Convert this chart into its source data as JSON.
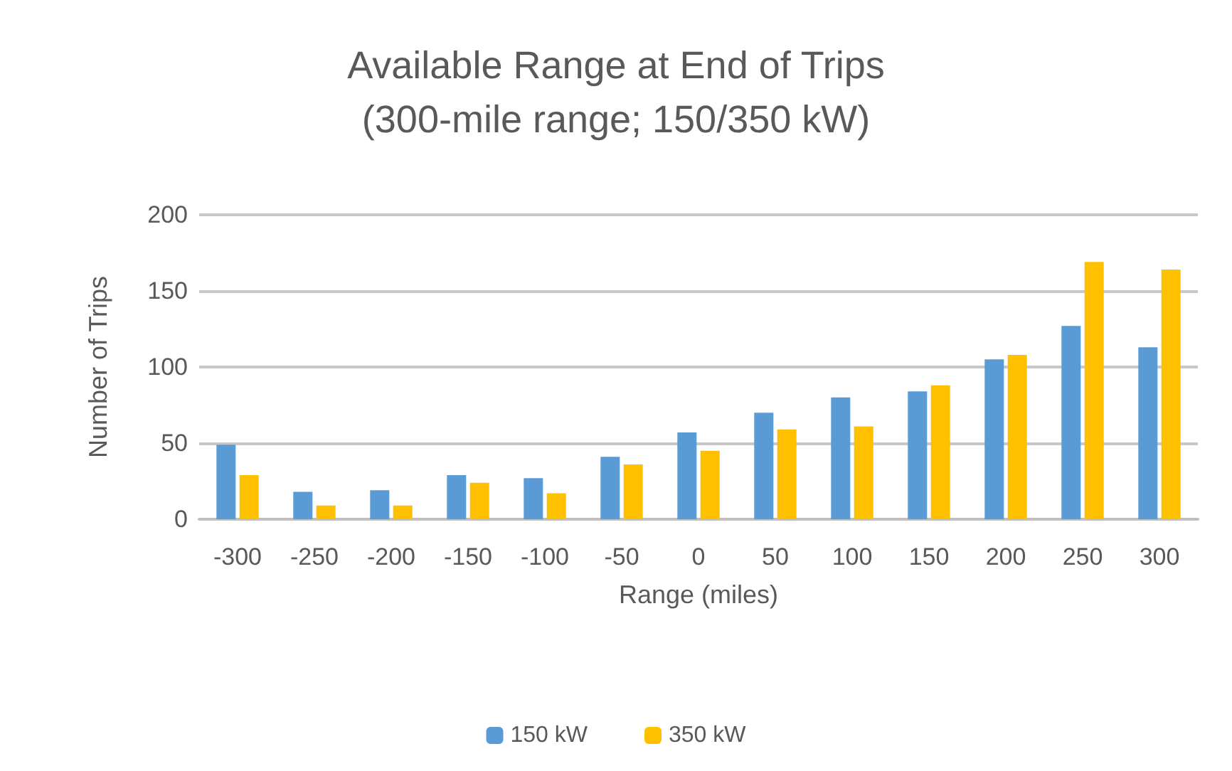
{
  "chart_data": {
    "type": "bar",
    "title": "Available Range at End of Trips\n(300-mile range; 150/350 kW)",
    "xlabel": "Range (miles)",
    "ylabel": "Number of Trips",
    "categories": [
      "-300",
      "-250",
      "-200",
      "-150",
      "-100",
      "-50",
      "0",
      "50",
      "100",
      "150",
      "200",
      "250",
      "300"
    ],
    "series": [
      {
        "name": "150 kW",
        "color": "#5b9bd5",
        "values": [
          49,
          18,
          19,
          29,
          27,
          41,
          57,
          70,
          80,
          84,
          105,
          127,
          113
        ]
      },
      {
        "name": "350 kW",
        "color": "#ffc000",
        "values": [
          29,
          9,
          9,
          24,
          17,
          36,
          45,
          59,
          61,
          88,
          108,
          169,
          164
        ]
      }
    ],
    "ylim": [
      0,
      200
    ],
    "yticks": [
      0,
      50,
      100,
      150,
      200
    ],
    "grid": "y",
    "legend": "bottom"
  }
}
